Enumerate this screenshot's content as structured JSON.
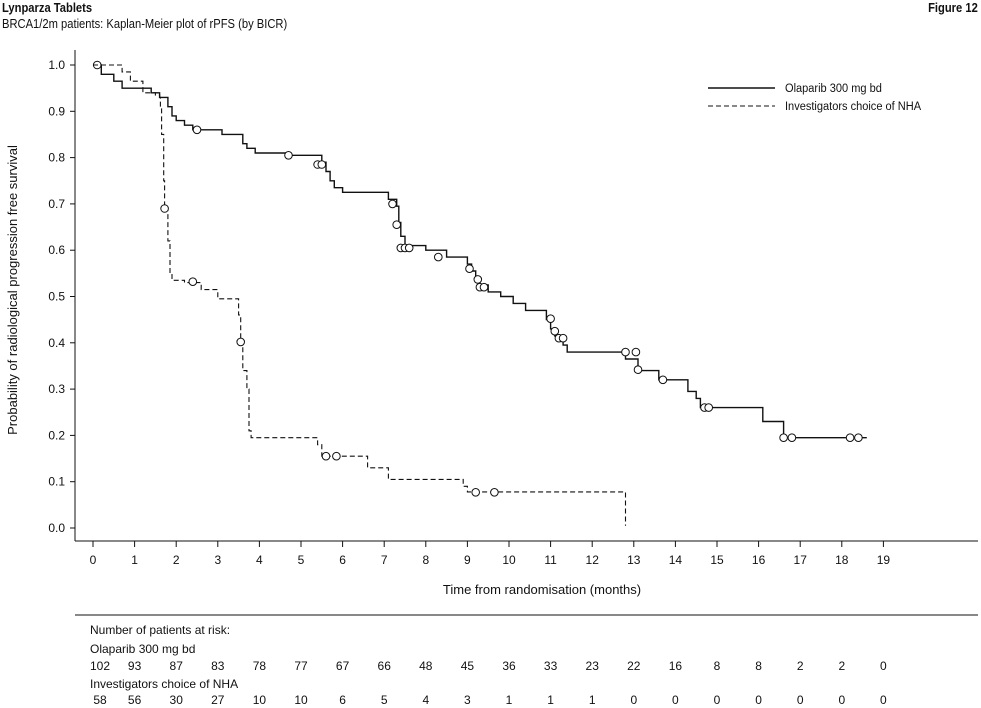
{
  "header": {
    "title": "Lynparza Tablets",
    "subtitle": "BRCA1/2m patients: Kaplan-Meier plot of rPFS (by BICR)",
    "figure_label": "Figure 12"
  },
  "chart_data": {
    "type": "line",
    "title": "BRCA1/2m patients: Kaplan-Meier plot of rPFS (by BICR)",
    "xlabel": "Time from randomisation (months)",
    "ylabel": "Probability of radiological progression free survival",
    "xlim": [
      0,
      21
    ],
    "ylim": [
      0,
      1
    ],
    "xticks": [
      "0",
      "1",
      "2",
      "3",
      "4",
      "5",
      "6",
      "7",
      "8",
      "9",
      "10",
      "11",
      "12",
      "13",
      "14",
      "15",
      "16",
      "17",
      "18",
      "19"
    ],
    "yticks": [
      "0.0",
      "0.1",
      "0.2",
      "0.3",
      "0.4",
      "0.5",
      "0.6",
      "0.7",
      "0.8",
      "0.9",
      "1.0"
    ],
    "grid": false,
    "legend_position": "top-right",
    "series": [
      {
        "name": "Olaparib 300 mg bd",
        "line_style": "solid",
        "color": "#111111",
        "steps": [
          [
            0,
            1.0
          ],
          [
            0.2,
            0.98
          ],
          [
            0.5,
            0.965
          ],
          [
            0.7,
            0.95
          ],
          [
            1.4,
            0.94
          ],
          [
            1.6,
            0.93
          ],
          [
            1.8,
            0.91
          ],
          [
            1.9,
            0.89
          ],
          [
            2.0,
            0.88
          ],
          [
            2.2,
            0.87
          ],
          [
            2.4,
            0.86
          ],
          [
            3.1,
            0.85
          ],
          [
            3.6,
            0.83
          ],
          [
            3.7,
            0.82
          ],
          [
            3.9,
            0.81
          ],
          [
            4.7,
            0.805
          ],
          [
            5.5,
            0.79
          ],
          [
            5.6,
            0.77
          ],
          [
            5.7,
            0.75
          ],
          [
            5.8,
            0.735
          ],
          [
            6.0,
            0.725
          ],
          [
            7.1,
            0.71
          ],
          [
            7.3,
            0.695
          ],
          [
            7.35,
            0.66
          ],
          [
            7.4,
            0.63
          ],
          [
            7.5,
            0.61
          ],
          [
            8.0,
            0.6
          ],
          [
            8.5,
            0.585
          ],
          [
            9.0,
            0.57
          ],
          [
            9.1,
            0.555
          ],
          [
            9.2,
            0.54
          ],
          [
            9.3,
            0.525
          ],
          [
            9.5,
            0.51
          ],
          [
            9.8,
            0.5
          ],
          [
            10.1,
            0.485
          ],
          [
            10.4,
            0.47
          ],
          [
            10.9,
            0.45
          ],
          [
            11.0,
            0.43
          ],
          [
            11.1,
            0.415
          ],
          [
            11.3,
            0.395
          ],
          [
            11.4,
            0.38
          ],
          [
            12.8,
            0.365
          ],
          [
            13.1,
            0.34
          ],
          [
            13.6,
            0.32
          ],
          [
            14.3,
            0.295
          ],
          [
            14.5,
            0.28
          ],
          [
            14.6,
            0.26
          ],
          [
            16.1,
            0.23
          ],
          [
            16.6,
            0.195
          ],
          [
            18.6,
            0.195
          ]
        ],
        "censored": [
          [
            0.1,
            1.0
          ],
          [
            2.5,
            0.86
          ],
          [
            4.7,
            0.805
          ],
          [
            5.4,
            0.785
          ],
          [
            5.5,
            0.785
          ],
          [
            7.2,
            0.7
          ],
          [
            7.3,
            0.655
          ],
          [
            7.4,
            0.605
          ],
          [
            7.5,
            0.605
          ],
          [
            7.6,
            0.605
          ],
          [
            8.3,
            0.585
          ],
          [
            9.05,
            0.56
          ],
          [
            9.25,
            0.537
          ],
          [
            9.3,
            0.52
          ],
          [
            9.4,
            0.52
          ],
          [
            11.0,
            0.452
          ],
          [
            11.1,
            0.425
          ],
          [
            11.2,
            0.41
          ],
          [
            11.3,
            0.41
          ],
          [
            12.8,
            0.38
          ],
          [
            13.05,
            0.38
          ],
          [
            13.1,
            0.342
          ],
          [
            13.7,
            0.32
          ],
          [
            14.7,
            0.26
          ],
          [
            14.8,
            0.26
          ],
          [
            16.6,
            0.195
          ],
          [
            16.8,
            0.195
          ],
          [
            18.2,
            0.195
          ],
          [
            18.4,
            0.195
          ]
        ]
      },
      {
        "name": "Investigators choice of NHA",
        "line_style": "dashed",
        "color": "#111111",
        "steps": [
          [
            0,
            1.0
          ],
          [
            0.7,
            0.985
          ],
          [
            0.9,
            0.965
          ],
          [
            1.2,
            0.94
          ],
          [
            1.5,
            0.935
          ],
          [
            1.6,
            0.93
          ],
          [
            1.62,
            0.91
          ],
          [
            1.65,
            0.85
          ],
          [
            1.7,
            0.75
          ],
          [
            1.72,
            0.69
          ],
          [
            1.8,
            0.62
          ],
          [
            1.85,
            0.55
          ],
          [
            1.9,
            0.535
          ],
          [
            2.2,
            0.53
          ],
          [
            2.6,
            0.515
          ],
          [
            3.0,
            0.495
          ],
          [
            3.5,
            0.46
          ],
          [
            3.55,
            0.4
          ],
          [
            3.6,
            0.34
          ],
          [
            3.7,
            0.3
          ],
          [
            3.75,
            0.21
          ],
          [
            3.8,
            0.195
          ],
          [
            5.4,
            0.18
          ],
          [
            5.5,
            0.155
          ],
          [
            6.6,
            0.13
          ],
          [
            7.1,
            0.105
          ],
          [
            8.9,
            0.09
          ],
          [
            9.0,
            0.078
          ],
          [
            12.8,
            0.078
          ],
          [
            12.8,
            0.005
          ]
        ],
        "censored": [
          [
            1.72,
            0.69
          ],
          [
            2.4,
            0.532
          ],
          [
            3.55,
            0.402
          ],
          [
            5.6,
            0.155
          ],
          [
            5.85,
            0.155
          ],
          [
            9.2,
            0.077
          ],
          [
            9.65,
            0.077
          ]
        ]
      }
    ],
    "risk_table": {
      "heading": "Number of patients at risk:",
      "time_points": [
        0,
        1,
        2,
        3,
        4,
        5,
        6,
        7,
        8,
        9,
        10,
        11,
        12,
        13,
        14,
        15,
        16,
        17,
        18,
        19
      ],
      "rows": [
        {
          "label": "Olaparib 300 mg bd",
          "values": [
            "102",
            "93",
            "87",
            "83",
            "78",
            "77",
            "67",
            "66",
            "48",
            "45",
            "36",
            "33",
            "23",
            "22",
            "16",
            "8",
            "8",
            "2",
            "2",
            "0"
          ]
        },
        {
          "label": "Investigators choice of NHA",
          "values": [
            "58",
            "56",
            "30",
            "27",
            "10",
            "10",
            "6",
            "5",
            "4",
            "3",
            "1",
            "1",
            "1",
            "0",
            "0",
            "0",
            "0",
            "0",
            "0",
            "0"
          ]
        }
      ]
    }
  }
}
